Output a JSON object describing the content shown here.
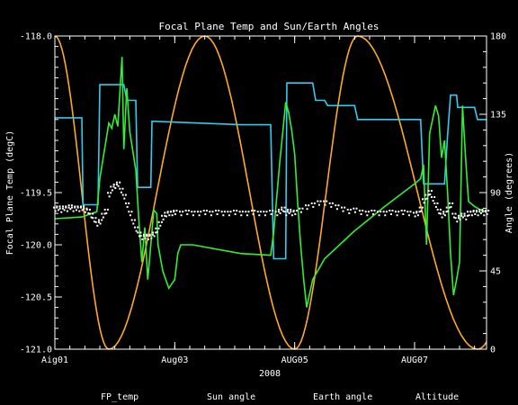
{
  "chart_data": {
    "type": "line",
    "title": "Focal Plane Temp and Sun/Earth Angles",
    "xlabel": "2008",
    "ylabel_left": "Focal Plane Temp (degC)",
    "ylabel_right": "Angle (degrees)",
    "x_range_days": [
      1,
      8.2
    ],
    "xticks": [
      {
        "day": 1,
        "label": "Aig01"
      },
      {
        "day": 3,
        "label": "Aug03"
      },
      {
        "day": 5,
        "label": "AUG05"
      },
      {
        "day": 7,
        "label": "AUG07"
      }
    ],
    "ylim_left": [
      -121.0,
      -118.0
    ],
    "yticks_left": [
      "-118.0",
      "-119.5",
      "-120.0",
      "-120.5",
      "-121.0"
    ],
    "yticks_left_values": [
      -118.0,
      -119.5,
      -120.0,
      -120.5,
      -121.0
    ],
    "ylim_right": [
      0,
      180
    ],
    "yticks_right": [
      "180",
      "135",
      "90",
      "45",
      "0"
    ],
    "yticks_right_values": [
      180,
      135,
      90,
      45,
      0
    ],
    "grid": false,
    "legend_position": "bottom",
    "series": [
      {
        "name": "FP_temp",
        "color": "#ffffff",
        "style": "points",
        "axis": "left",
        "points": [
          [
            1.0,
            -119.66
          ],
          [
            1.05,
            -119.65
          ],
          [
            1.1,
            -119.67
          ],
          [
            1.15,
            -119.65
          ],
          [
            1.2,
            -119.66
          ],
          [
            1.25,
            -119.64
          ],
          [
            1.3,
            -119.66
          ],
          [
            1.35,
            -119.65
          ],
          [
            1.4,
            -119.66
          ],
          [
            1.45,
            -119.65
          ],
          [
            1.5,
            -119.67
          ],
          [
            1.55,
            -119.68
          ],
          [
            1.6,
            -119.72
          ],
          [
            1.65,
            -119.76
          ],
          [
            1.7,
            -119.8
          ],
          [
            1.75,
            -119.78
          ],
          [
            1.8,
            -119.72
          ],
          [
            1.85,
            -119.68
          ],
          [
            1.9,
            -119.52
          ],
          [
            1.95,
            -119.46
          ],
          [
            2.0,
            -119.44
          ],
          [
            2.05,
            -119.42
          ],
          [
            2.1,
            -119.48
          ],
          [
            2.15,
            -119.54
          ],
          [
            2.2,
            -119.62
          ],
          [
            2.25,
            -119.7
          ],
          [
            2.3,
            -119.78
          ],
          [
            2.35,
            -119.85
          ],
          [
            2.4,
            -119.9
          ],
          [
            2.45,
            -119.93
          ],
          [
            2.5,
            -119.92
          ],
          [
            2.55,
            -119.93
          ],
          [
            2.6,
            -119.92
          ],
          [
            2.65,
            -119.9
          ],
          [
            2.7,
            -119.86
          ],
          [
            2.75,
            -119.8
          ],
          [
            2.8,
            -119.74
          ],
          [
            2.85,
            -119.71
          ],
          [
            2.9,
            -119.7
          ],
          [
            2.95,
            -119.7
          ],
          [
            3.0,
            -119.69
          ],
          [
            3.1,
            -119.7
          ],
          [
            3.2,
            -119.69
          ],
          [
            3.3,
            -119.7
          ],
          [
            3.4,
            -119.7
          ],
          [
            3.5,
            -119.69
          ],
          [
            3.6,
            -119.7
          ],
          [
            3.7,
            -119.69
          ],
          [
            3.8,
            -119.7
          ],
          [
            3.9,
            -119.7
          ],
          [
            4.0,
            -119.69
          ],
          [
            4.1,
            -119.7
          ],
          [
            4.2,
            -119.7
          ],
          [
            4.3,
            -119.69
          ],
          [
            4.4,
            -119.7
          ],
          [
            4.5,
            -119.7
          ],
          [
            4.6,
            -119.69
          ],
          [
            4.7,
            -119.7
          ],
          [
            4.75,
            -119.68
          ],
          [
            4.8,
            -119.66
          ],
          [
            4.85,
            -119.7
          ],
          [
            4.9,
            -119.68
          ],
          [
            4.95,
            -119.7
          ],
          [
            5.0,
            -119.69
          ],
          [
            5.1,
            -119.67
          ],
          [
            5.2,
            -119.64
          ],
          [
            5.3,
            -119.62
          ],
          [
            5.4,
            -119.6
          ],
          [
            5.5,
            -119.6
          ],
          [
            5.6,
            -119.62
          ],
          [
            5.7,
            -119.64
          ],
          [
            5.8,
            -119.66
          ],
          [
            5.9,
            -119.68
          ],
          [
            6.0,
            -119.67
          ],
          [
            6.1,
            -119.69
          ],
          [
            6.2,
            -119.7
          ],
          [
            6.3,
            -119.69
          ],
          [
            6.4,
            -119.7
          ],
          [
            6.5,
            -119.7
          ],
          [
            6.6,
            -119.69
          ],
          [
            6.7,
            -119.7
          ],
          [
            6.8,
            -119.69
          ],
          [
            6.9,
            -119.7
          ],
          [
            7.0,
            -119.71
          ],
          [
            7.05,
            -119.7
          ],
          [
            7.1,
            -119.66
          ],
          [
            7.15,
            -119.58
          ],
          [
            7.2,
            -119.54
          ],
          [
            7.25,
            -119.5
          ],
          [
            7.3,
            -119.56
          ],
          [
            7.35,
            -119.62
          ],
          [
            7.4,
            -119.68
          ],
          [
            7.45,
            -119.72
          ],
          [
            7.5,
            -119.7
          ],
          [
            7.55,
            -119.66
          ],
          [
            7.6,
            -119.62
          ],
          [
            7.65,
            -119.72
          ],
          [
            7.7,
            -119.76
          ],
          [
            7.75,
            -119.74
          ],
          [
            7.8,
            -119.72
          ],
          [
            7.85,
            -119.74
          ],
          [
            7.9,
            -119.7
          ],
          [
            7.95,
            -119.7
          ],
          [
            8.0,
            -119.69
          ],
          [
            8.05,
            -119.7
          ],
          [
            8.1,
            -119.68
          ],
          [
            8.15,
            -119.7
          ],
          [
            8.2,
            -119.69
          ]
        ]
      },
      {
        "name": "Sun angle",
        "color": "#33ccee",
        "style": "line",
        "axis": "right",
        "points": [
          [
            1.0,
            133
          ],
          [
            1.45,
            133
          ],
          [
            1.47,
            83
          ],
          [
            1.72,
            83
          ],
          [
            1.75,
            152
          ],
          [
            2.15,
            152
          ],
          [
            2.2,
            143
          ],
          [
            2.35,
            143
          ],
          [
            2.38,
            93
          ],
          [
            2.6,
            93
          ],
          [
            2.62,
            131
          ],
          [
            4.1,
            129
          ],
          [
            4.6,
            129
          ],
          [
            4.65,
            52
          ],
          [
            4.85,
            52
          ],
          [
            4.87,
            153
          ],
          [
            5.3,
            153
          ],
          [
            5.35,
            143
          ],
          [
            5.5,
            143
          ],
          [
            5.55,
            140
          ],
          [
            6.0,
            140
          ],
          [
            6.05,
            132
          ],
          [
            7.1,
            132
          ],
          [
            7.15,
            95
          ],
          [
            7.5,
            95
          ],
          [
            7.55,
            123
          ],
          [
            7.6,
            146
          ],
          [
            7.7,
            146
          ],
          [
            7.72,
            139
          ],
          [
            8.0,
            139
          ],
          [
            8.05,
            132
          ],
          [
            8.2,
            132
          ]
        ]
      },
      {
        "name": "Earth angle",
        "color": "#33ee33",
        "style": "line",
        "axis": "right",
        "points": [
          [
            1.0,
            75
          ],
          [
            1.45,
            76
          ],
          [
            1.7,
            79
          ],
          [
            1.75,
            98
          ],
          [
            1.9,
            130
          ],
          [
            1.95,
            127
          ],
          [
            2.0,
            135
          ],
          [
            2.05,
            128
          ],
          [
            2.12,
            168
          ],
          [
            2.15,
            115
          ],
          [
            2.2,
            150
          ],
          [
            2.25,
            125
          ],
          [
            2.35,
            103
          ],
          [
            2.4,
            75
          ],
          [
            2.45,
            50
          ],
          [
            2.5,
            70
          ],
          [
            2.55,
            40
          ],
          [
            2.6,
            60
          ],
          [
            2.65,
            80
          ],
          [
            2.7,
            78
          ],
          [
            2.72,
            60
          ],
          [
            2.8,
            45
          ],
          [
            2.9,
            35
          ],
          [
            3.0,
            40
          ],
          [
            3.05,
            55
          ],
          [
            3.1,
            60
          ],
          [
            3.3,
            60
          ],
          [
            4.1,
            55
          ],
          [
            4.6,
            54
          ],
          [
            4.65,
            67
          ],
          [
            4.75,
            107
          ],
          [
            4.8,
            124
          ],
          [
            4.85,
            142
          ],
          [
            4.9,
            136
          ],
          [
            4.95,
            126
          ],
          [
            5.0,
            112
          ],
          [
            5.05,
            84
          ],
          [
            5.1,
            60
          ],
          [
            5.15,
            40
          ],
          [
            5.2,
            24
          ],
          [
            5.3,
            40
          ],
          [
            5.5,
            52
          ],
          [
            6.0,
            68
          ],
          [
            6.5,
            82
          ],
          [
            7.0,
            95
          ],
          [
            7.1,
            98
          ],
          [
            7.15,
            106
          ],
          [
            7.2,
            60
          ],
          [
            7.25,
            124
          ],
          [
            7.35,
            140
          ],
          [
            7.4,
            134
          ],
          [
            7.45,
            110
          ],
          [
            7.5,
            120
          ],
          [
            7.55,
            90
          ],
          [
            7.6,
            55
          ],
          [
            7.65,
            31
          ],
          [
            7.7,
            40
          ],
          [
            7.75,
            50
          ],
          [
            7.8,
            140
          ],
          [
            7.85,
            110
          ],
          [
            7.9,
            85
          ],
          [
            8.0,
            82
          ],
          [
            8.1,
            80
          ],
          [
            8.2,
            79
          ]
        ]
      },
      {
        "name": "Altitude",
        "color": "#ffaa22",
        "style": "line",
        "axis": "right",
        "shape": "sinusoid",
        "min_days": [
          1.9,
          5.0,
          8.05
        ],
        "max_days": [
          1.0,
          3.5,
          6.05
        ],
        "range": [
          0,
          180
        ]
      }
    ]
  }
}
